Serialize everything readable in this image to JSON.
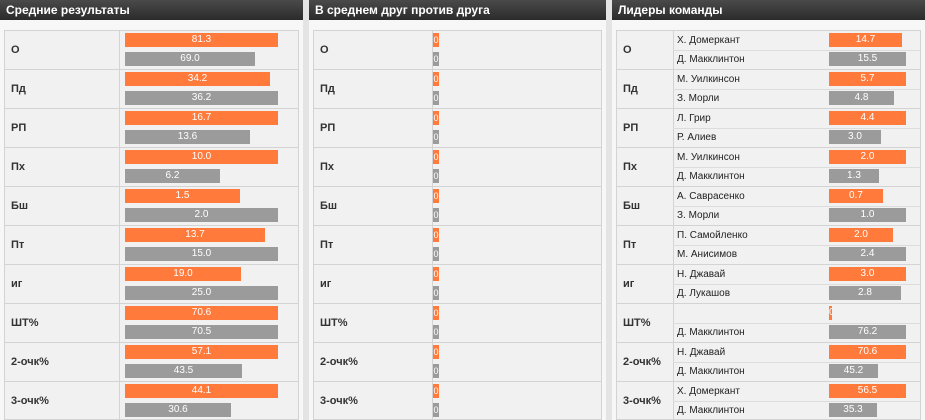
{
  "panels": {
    "averages": {
      "title": "Средние результаты"
    },
    "head_to_head": {
      "title": "В среднем друг против друга"
    },
    "leaders": {
      "title": "Лидеры команды"
    }
  },
  "colors": {
    "home": "#ff7a3b",
    "away": "#9b9b9b",
    "header": "#2b2b2b"
  },
  "stats": [
    {
      "label": "О",
      "home": "81.3",
      "away": "69.0",
      "h2h_home": "0",
      "h2h_away": "0",
      "leader_home": {
        "name": "Х. Домеркант",
        "value": "14.7"
      },
      "leader_away": {
        "name": "Д. Макклинтон",
        "value": "15.5"
      }
    },
    {
      "label": "Пд",
      "home": "34.2",
      "away": "36.2",
      "h2h_home": "0",
      "h2h_away": "0",
      "leader_home": {
        "name": "М. Уилкинсон",
        "value": "5.7"
      },
      "leader_away": {
        "name": "З. Морли",
        "value": "4.8"
      }
    },
    {
      "label": "РП",
      "home": "16.7",
      "away": "13.6",
      "h2h_home": "0",
      "h2h_away": "0",
      "leader_home": {
        "name": "Л. Грир",
        "value": "4.4"
      },
      "leader_away": {
        "name": "Р. Алиев",
        "value": "3.0"
      }
    },
    {
      "label": "Пх",
      "home": "10.0",
      "away": "6.2",
      "h2h_home": "0",
      "h2h_away": "0",
      "leader_home": {
        "name": "М. Уилкинсон",
        "value": "2.0"
      },
      "leader_away": {
        "name": "Д. Макклинтон",
        "value": "1.3"
      }
    },
    {
      "label": "Бш",
      "home": "1.5",
      "away": "2.0",
      "h2h_home": "0",
      "h2h_away": "0",
      "leader_home": {
        "name": "А. Саврасенко",
        "value": "0.7"
      },
      "leader_away": {
        "name": "З. Морли",
        "value": "1.0"
      }
    },
    {
      "label": "Пт",
      "home": "13.7",
      "away": "15.0",
      "h2h_home": "0",
      "h2h_away": "0",
      "leader_home": {
        "name": "П. Самойленко",
        "value": "2.0"
      },
      "leader_away": {
        "name": "М. Анисимов",
        "value": "2.4"
      }
    },
    {
      "label": "иг",
      "home": "19.0",
      "away": "25.0",
      "h2h_home": "0",
      "h2h_away": "0",
      "leader_home": {
        "name": "Н. Джавай",
        "value": "3.0"
      },
      "leader_away": {
        "name": "Д. Лукашов",
        "value": "2.8"
      }
    },
    {
      "label": "ШТ%",
      "home": "70.6",
      "away": "70.5",
      "h2h_home": "0",
      "h2h_away": "0",
      "leader_home": {
        "name": "",
        "value": "0.0"
      },
      "leader_away": {
        "name": "Д. Макклинтон",
        "value": "76.2"
      }
    },
    {
      "label": "2-очк%",
      "home": "57.1",
      "away": "43.5",
      "h2h_home": "0",
      "h2h_away": "0",
      "leader_home": {
        "name": "Н. Джавай",
        "value": "70.6"
      },
      "leader_away": {
        "name": "Д. Макклинтон",
        "value": "45.2"
      }
    },
    {
      "label": "3-очк%",
      "home": "44.1",
      "away": "30.6",
      "h2h_home": "0",
      "h2h_away": "0",
      "leader_home": {
        "name": "Х. Домеркант",
        "value": "56.5"
      },
      "leader_away": {
        "name": "Д. Макклинтон",
        "value": "35.3"
      }
    }
  ]
}
